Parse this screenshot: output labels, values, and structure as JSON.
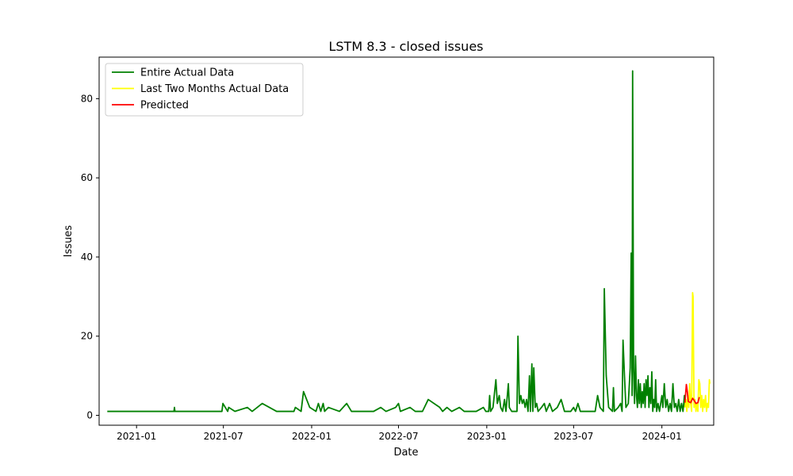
{
  "chart_data": {
    "type": "line",
    "title": "LSTM 8.3 - closed issues",
    "xlabel": "Date",
    "ylabel": "Issues",
    "xlim": [
      "2020-10-15",
      "2024-04-18"
    ],
    "ylim": [
      -2.5,
      90.5
    ],
    "x_ticks": [
      "2021-01-01",
      "2021-07-01",
      "2022-01-01",
      "2022-07-01",
      "2023-01-01",
      "2023-07-01",
      "2024-01-01"
    ],
    "x_tick_labels": [
      "2021-01",
      "2021-07",
      "2022-01",
      "2022-07",
      "2023-01",
      "2023-07",
      "2024-01"
    ],
    "y_ticks": [
      0,
      20,
      40,
      60,
      80
    ],
    "y_tick_labels": [
      "0",
      "20",
      "40",
      "60",
      "80"
    ],
    "legend_position": "top-left",
    "grid": false,
    "series": [
      {
        "name": "Entire Actual Data",
        "color": "#008000",
        "points": [
          [
            "2020-11-01",
            1
          ],
          [
            "2021-03-20",
            1
          ],
          [
            "2021-03-21",
            2
          ],
          [
            "2021-03-22",
            1
          ],
          [
            "2021-06-28",
            1
          ],
          [
            "2021-06-30",
            3
          ],
          [
            "2021-07-10",
            1
          ],
          [
            "2021-07-12",
            2
          ],
          [
            "2021-07-25",
            1
          ],
          [
            "2021-08-20",
            2
          ],
          [
            "2021-08-30",
            1
          ],
          [
            "2021-09-20",
            3
          ],
          [
            "2021-10-20",
            1
          ],
          [
            "2021-11-25",
            1
          ],
          [
            "2021-11-28",
            2
          ],
          [
            "2021-12-10",
            1
          ],
          [
            "2021-12-15",
            6
          ],
          [
            "2021-12-28",
            2
          ],
          [
            "2022-01-10",
            1
          ],
          [
            "2022-01-15",
            3
          ],
          [
            "2022-01-20",
            1
          ],
          [
            "2022-01-25",
            3
          ],
          [
            "2022-01-28",
            1
          ],
          [
            "2022-02-05",
            2
          ],
          [
            "2022-02-28",
            1
          ],
          [
            "2022-03-15",
            3
          ],
          [
            "2022-03-25",
            1
          ],
          [
            "2022-05-10",
            1
          ],
          [
            "2022-05-25",
            2
          ],
          [
            "2022-06-05",
            1
          ],
          [
            "2022-06-25",
            2
          ],
          [
            "2022-07-01",
            3
          ],
          [
            "2022-07-05",
            1
          ],
          [
            "2022-07-25",
            2
          ],
          [
            "2022-08-05",
            1
          ],
          [
            "2022-08-20",
            1
          ],
          [
            "2022-09-01",
            4
          ],
          [
            "2022-09-25",
            2
          ],
          [
            "2022-10-01",
            1
          ],
          [
            "2022-10-10",
            2
          ],
          [
            "2022-10-20",
            1
          ],
          [
            "2022-11-05",
            2
          ],
          [
            "2022-11-15",
            1
          ],
          [
            "2022-12-10",
            1
          ],
          [
            "2022-12-25",
            2
          ],
          [
            "2022-12-30",
            1
          ],
          [
            "2023-01-05",
            1
          ],
          [
            "2023-01-07",
            5
          ],
          [
            "2023-01-09",
            1
          ],
          [
            "2023-01-14",
            2
          ],
          [
            "2023-01-20",
            9
          ],
          [
            "2023-01-23",
            3
          ],
          [
            "2023-01-27",
            5
          ],
          [
            "2023-01-30",
            2
          ],
          [
            "2023-02-03",
            1
          ],
          [
            "2023-02-07",
            4
          ],
          [
            "2023-02-10",
            1
          ],
          [
            "2023-02-15",
            8
          ],
          [
            "2023-02-17",
            2
          ],
          [
            "2023-02-22",
            1
          ],
          [
            "2023-03-05",
            1
          ],
          [
            "2023-03-07",
            20
          ],
          [
            "2023-03-10",
            3
          ],
          [
            "2023-03-13",
            5
          ],
          [
            "2023-03-16",
            3
          ],
          [
            "2023-03-19",
            4
          ],
          [
            "2023-03-22",
            2
          ],
          [
            "2023-03-25",
            4
          ],
          [
            "2023-03-28",
            1
          ],
          [
            "2023-03-31",
            10
          ],
          [
            "2023-04-02",
            1
          ],
          [
            "2023-04-05",
            13
          ],
          [
            "2023-04-07",
            1
          ],
          [
            "2023-04-09",
            12
          ],
          [
            "2023-04-12",
            2
          ],
          [
            "2023-04-15",
            3
          ],
          [
            "2023-04-18",
            1
          ],
          [
            "2023-04-25",
            2
          ],
          [
            "2023-05-01",
            3
          ],
          [
            "2023-05-05",
            1
          ],
          [
            "2023-05-12",
            3
          ],
          [
            "2023-05-18",
            1
          ],
          [
            "2023-05-28",
            2
          ],
          [
            "2023-06-05",
            4
          ],
          [
            "2023-06-12",
            1
          ],
          [
            "2023-06-25",
            1
          ],
          [
            "2023-07-01",
            2
          ],
          [
            "2023-07-05",
            1
          ],
          [
            "2023-07-10",
            3
          ],
          [
            "2023-07-15",
            1
          ],
          [
            "2023-08-05",
            1
          ],
          [
            "2023-08-15",
            1
          ],
          [
            "2023-08-20",
            5
          ],
          [
            "2023-08-25",
            2
          ],
          [
            "2023-09-01",
            1
          ],
          [
            "2023-09-03",
            32
          ],
          [
            "2023-09-07",
            10
          ],
          [
            "2023-09-12",
            2
          ],
          [
            "2023-09-20",
            1
          ],
          [
            "2023-09-22",
            7
          ],
          [
            "2023-09-24",
            1
          ],
          [
            "2023-10-02",
            2
          ],
          [
            "2023-10-07",
            3
          ],
          [
            "2023-10-10",
            1
          ],
          [
            "2023-10-12",
            19
          ],
          [
            "2023-10-15",
            10
          ],
          [
            "2023-10-18",
            2
          ],
          [
            "2023-10-23",
            3
          ],
          [
            "2023-10-27",
            12
          ],
          [
            "2023-10-29",
            41
          ],
          [
            "2023-10-31",
            5
          ],
          [
            "2023-11-01",
            87
          ],
          [
            "2023-11-03",
            12
          ],
          [
            "2023-11-05",
            3
          ],
          [
            "2023-11-07",
            15
          ],
          [
            "2023-11-09",
            5
          ],
          [
            "2023-11-11",
            2
          ],
          [
            "2023-11-13",
            9
          ],
          [
            "2023-11-15",
            3
          ],
          [
            "2023-11-17",
            8
          ],
          [
            "2023-11-19",
            2
          ],
          [
            "2023-11-21",
            6
          ],
          [
            "2023-11-23",
            3
          ],
          [
            "2023-11-25",
            8
          ],
          [
            "2023-11-27",
            2
          ],
          [
            "2023-11-29",
            9
          ],
          [
            "2023-12-01",
            5
          ],
          [
            "2023-12-03",
            10
          ],
          [
            "2023-12-05",
            2
          ],
          [
            "2023-12-07",
            7
          ],
          [
            "2023-12-09",
            3
          ],
          [
            "2023-12-11",
            11
          ],
          [
            "2023-12-13",
            1
          ],
          [
            "2023-12-15",
            4
          ],
          [
            "2023-12-17",
            2
          ],
          [
            "2023-12-19",
            9
          ],
          [
            "2023-12-21",
            1
          ],
          [
            "2023-12-24",
            3
          ],
          [
            "2023-12-27",
            1
          ],
          [
            "2024-01-01",
            5
          ],
          [
            "2024-01-03",
            2
          ],
          [
            "2024-01-06",
            8
          ],
          [
            "2024-01-09",
            2
          ],
          [
            "2024-01-12",
            4
          ],
          [
            "2024-01-15",
            1
          ],
          [
            "2024-01-18",
            3
          ],
          [
            "2024-01-21",
            1
          ],
          [
            "2024-01-24",
            8
          ],
          [
            "2024-01-27",
            2
          ],
          [
            "2024-01-30",
            3
          ],
          [
            "2024-02-02",
            1
          ],
          [
            "2024-02-05",
            4
          ],
          [
            "2024-02-08",
            1
          ],
          [
            "2024-02-11",
            3
          ],
          [
            "2024-02-14",
            1
          ],
          [
            "2024-02-17",
            5
          ],
          [
            "2024-02-18",
            2
          ]
        ]
      },
      {
        "name": "Last Two Months Actual Data",
        "color": "#ffff00",
        "points": [
          [
            "2024-02-18",
            2
          ],
          [
            "2024-02-20",
            4
          ],
          [
            "2024-02-22",
            1
          ],
          [
            "2024-02-24",
            5
          ],
          [
            "2024-02-26",
            2
          ],
          [
            "2024-02-28",
            8
          ],
          [
            "2024-03-01",
            3
          ],
          [
            "2024-03-03",
            1
          ],
          [
            "2024-03-05",
            31
          ],
          [
            "2024-03-06",
            30
          ],
          [
            "2024-03-08",
            2
          ],
          [
            "2024-03-10",
            4
          ],
          [
            "2024-03-12",
            1
          ],
          [
            "2024-03-14",
            3
          ],
          [
            "2024-03-16",
            1
          ],
          [
            "2024-03-18",
            9
          ],
          [
            "2024-03-20",
            8
          ],
          [
            "2024-03-22",
            2
          ],
          [
            "2024-03-24",
            5
          ],
          [
            "2024-03-26",
            1
          ],
          [
            "2024-03-28",
            4
          ],
          [
            "2024-03-30",
            2
          ],
          [
            "2024-04-01",
            5
          ],
          [
            "2024-04-03",
            1
          ],
          [
            "2024-04-05",
            3
          ],
          [
            "2024-04-07",
            2
          ],
          [
            "2024-04-09",
            9
          ],
          [
            "2024-04-10",
            8
          ]
        ]
      },
      {
        "name": "Predicted",
        "color": "#ff0000",
        "points": [
          [
            "2024-02-18",
            3.2
          ],
          [
            "2024-02-21",
            7.8
          ],
          [
            "2024-02-23",
            6.0
          ],
          [
            "2024-02-25",
            3.5
          ],
          [
            "2024-03-01",
            3.2
          ],
          [
            "2024-03-05",
            4.3
          ],
          [
            "2024-03-08",
            3.8
          ],
          [
            "2024-03-12",
            3.0
          ],
          [
            "2024-03-16",
            3.2
          ],
          [
            "2024-03-19",
            4.6
          ]
        ]
      }
    ]
  }
}
